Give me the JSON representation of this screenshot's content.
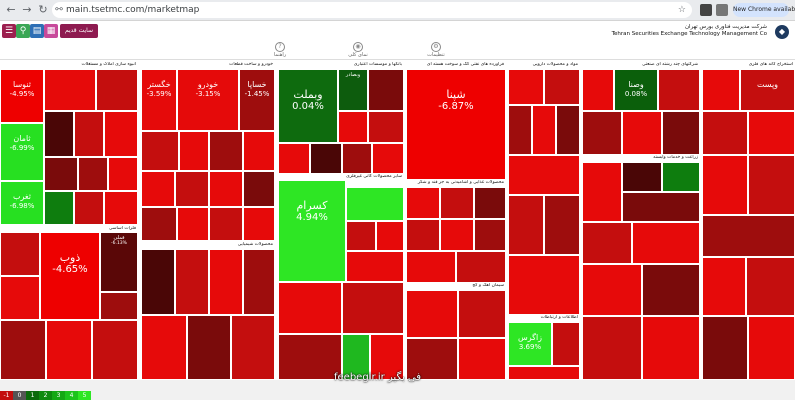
{
  "browser": {
    "url": "main.tsetmc.com/marketmap",
    "chip_label": "New Chrome available"
  },
  "app": {
    "site_button": "سایت قدیم",
    "brand_fa": "شرکت مدیریت فناوری بورس تهران",
    "brand_en": "Tehran Securities Exchange Technology Management Co",
    "tools": [
      "راهنما",
      "نمای کلی",
      "تنظیمات"
    ]
  },
  "colors": {
    "accent": "#8e1b50",
    "strong_red": "#e60000",
    "red": "#c90f0f",
    "dark_red": "#7a0b0b",
    "deep_red": "#4a0606",
    "green": "#1fd11f",
    "dark_green": "#0a5c0a"
  },
  "sectors": [
    "انبوه سازی املاک و مستغلات",
    "خودرو و ساخت قطعات",
    "بانکها و موسسات اعتباری",
    "فراورده های نفتی کک و سوخت هسته ای",
    "مواد و محصولات دارویی",
    "شرکتهای چند رشته ای صنعتی",
    "استخراج کانه های فلزی",
    "فلزات اساسی",
    "محصولات شیمیایی",
    "سایر محصولات کانی غیرفلزی",
    "محصولات غذایی و آشامیدنی به جز قند و شکر",
    "سیمان آهک و گچ",
    "اطلاعات و ارتباطات",
    "زراعت و خدمات وابسته"
  ],
  "tiles": {
    "t1": {
      "symbol": "ثنوسا",
      "pct": "-4.95%"
    },
    "t2": {
      "symbol": "ثامان",
      "pct": "-6.99%"
    },
    "t3": {
      "symbol": "ثغرب",
      "pct": "-6.98%"
    },
    "t4": {
      "symbol": "وبملت",
      "pct": "0.04%"
    },
    "t5": {
      "symbol": "شپنا",
      "pct": "-6.87%"
    },
    "t6": {
      "symbol": "کسرام",
      "pct": "4.94%"
    },
    "t7": {
      "symbol": "ذوب",
      "pct": "-4.65%"
    },
    "t8": {
      "symbol": "خگستر",
      "pct": "-3.59%"
    },
    "t9": {
      "symbol": "خودرو",
      "pct": "-3.15%"
    },
    "t10": {
      "symbol": "وصنا",
      "pct": "0.08%"
    },
    "t11": {
      "symbol": "فملی",
      "pct": "-6.13%"
    },
    "t12": {
      "symbol": "خساپا",
      "pct": "-1.45%"
    },
    "t13": {
      "symbol": "وبصادر",
      "pct": ""
    },
    "t14": {
      "symbol": "وپست",
      "pct": ""
    },
    "t15": {
      "symbol": "زاگرس",
      "pct": "3.69%"
    }
  },
  "legend": [
    "-1",
    "0",
    "1",
    "2",
    "3",
    "4",
    "5"
  ],
  "watermark": "feebegir.ir فی بگیر"
}
